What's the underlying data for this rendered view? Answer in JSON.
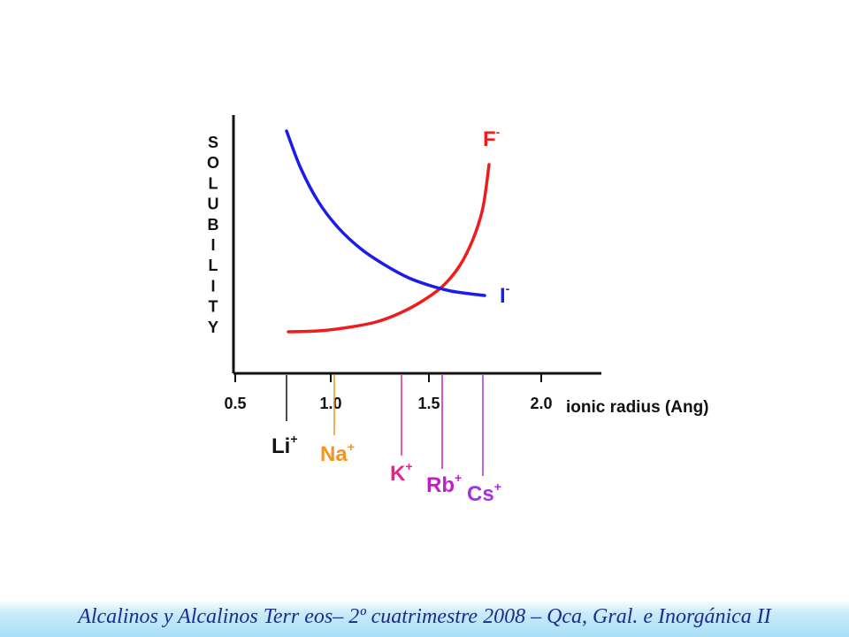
{
  "chart_data": {
    "type": "line",
    "title": "",
    "ylabel": "SOLUBILITY",
    "xlabel": "ionic radius (Ang)",
    "xlim": [
      0.5,
      2.2
    ],
    "ylim": [
      0,
      10
    ],
    "x_ticks": [
      "0.5",
      "1.0",
      "1.5",
      "2.0"
    ],
    "x_tick_values": [
      0.5,
      1.0,
      1.5,
      2.0
    ],
    "y_ticks": false,
    "grid": false,
    "series": [
      {
        "name": "F",
        "superscript": "-",
        "color": "#ee1c1c",
        "x": [
          0.78,
          0.9,
          1.0,
          1.1,
          1.2,
          1.3,
          1.4,
          1.5,
          1.6,
          1.7,
          1.74
        ],
        "y": [
          1.5,
          1.6,
          1.75,
          2.0,
          2.4,
          2.9,
          3.6,
          4.6,
          6.1,
          8.4,
          9.6
        ]
      },
      {
        "name": "I",
        "superscript": "-",
        "color": "#1b1bee",
        "x": [
          0.76,
          0.85,
          0.95,
          1.05,
          1.15,
          1.25,
          1.35,
          1.45,
          1.55,
          1.65,
          1.72
        ],
        "y": [
          10.0,
          8.7,
          7.6,
          6.7,
          5.9,
          5.3,
          4.8,
          4.4,
          4.1,
          3.9,
          3.8
        ]
      }
    ],
    "cations": [
      {
        "label": "Li",
        "superscript": "+",
        "x": 0.76,
        "color": "#111111"
      },
      {
        "label": "Na",
        "superscript": "+",
        "x": 1.02,
        "color": "#f5931e"
      },
      {
        "label": "K",
        "superscript": "+",
        "x": 1.38,
        "color": "#e8238c"
      },
      {
        "label": "Rb",
        "superscript": "+",
        "x": 1.52,
        "color": "#c21ec8"
      },
      {
        "label": "Cs",
        "superscript": "+",
        "x": 1.67,
        "color": "#a630e8"
      }
    ]
  },
  "footer": {
    "text": "Alcalinos y Alcalinos Terr eos– 2º cuatrimestre 2008 – Qca, Gral. e Inorgánica II"
  }
}
